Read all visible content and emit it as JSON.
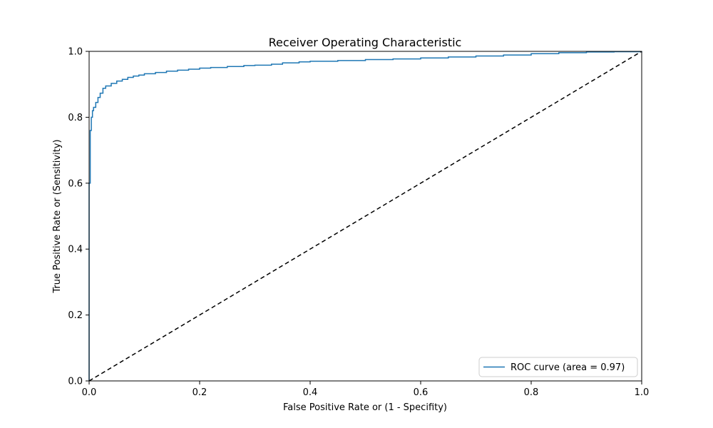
{
  "chart_data": {
    "type": "line",
    "title": "Receiver Operating Characteristic",
    "xlabel": "False Positive Rate or (1 - Specifity)",
    "ylabel": "True Positive Rate or (Sensitivity)",
    "xlim": [
      0.0,
      1.0
    ],
    "ylim": [
      0.0,
      1.0
    ],
    "grid": false,
    "legend_position": "lower-right",
    "x_ticks": [
      "0.0",
      "0.2",
      "0.4",
      "0.6",
      "0.8",
      "1.0"
    ],
    "y_ticks": [
      "0.0",
      "0.2",
      "0.4",
      "0.6",
      "0.8",
      "1.0"
    ],
    "series": [
      {
        "name": "ROC curve (area = 0.97)",
        "color": "#1f77b4",
        "line_style": "solid",
        "x": [
          0.0,
          0.0,
          0.002,
          0.004,
          0.006,
          0.008,
          0.012,
          0.016,
          0.02,
          0.025,
          0.03,
          0.04,
          0.05,
          0.06,
          0.07,
          0.08,
          0.09,
          0.1,
          0.12,
          0.14,
          0.16,
          0.18,
          0.2,
          0.22,
          0.25,
          0.28,
          0.3,
          0.33,
          0.35,
          0.38,
          0.4,
          0.45,
          0.5,
          0.55,
          0.6,
          0.65,
          0.7,
          0.75,
          0.8,
          0.85,
          0.9,
          0.95,
          1.0
        ],
        "y": [
          0.0,
          0.6,
          0.76,
          0.8,
          0.82,
          0.83,
          0.845,
          0.86,
          0.873,
          0.888,
          0.895,
          0.903,
          0.91,
          0.915,
          0.921,
          0.925,
          0.928,
          0.932,
          0.936,
          0.94,
          0.943,
          0.946,
          0.949,
          0.951,
          0.954,
          0.957,
          0.958,
          0.961,
          0.965,
          0.968,
          0.97,
          0.972,
          0.975,
          0.977,
          0.98,
          0.983,
          0.986,
          0.989,
          0.993,
          0.996,
          0.998,
          0.999,
          1.0
        ]
      },
      {
        "name": "",
        "color": "#000000",
        "line_style": "dashed",
        "x": [
          0.0,
          1.0
        ],
        "y": [
          0.0,
          1.0
        ]
      }
    ]
  }
}
